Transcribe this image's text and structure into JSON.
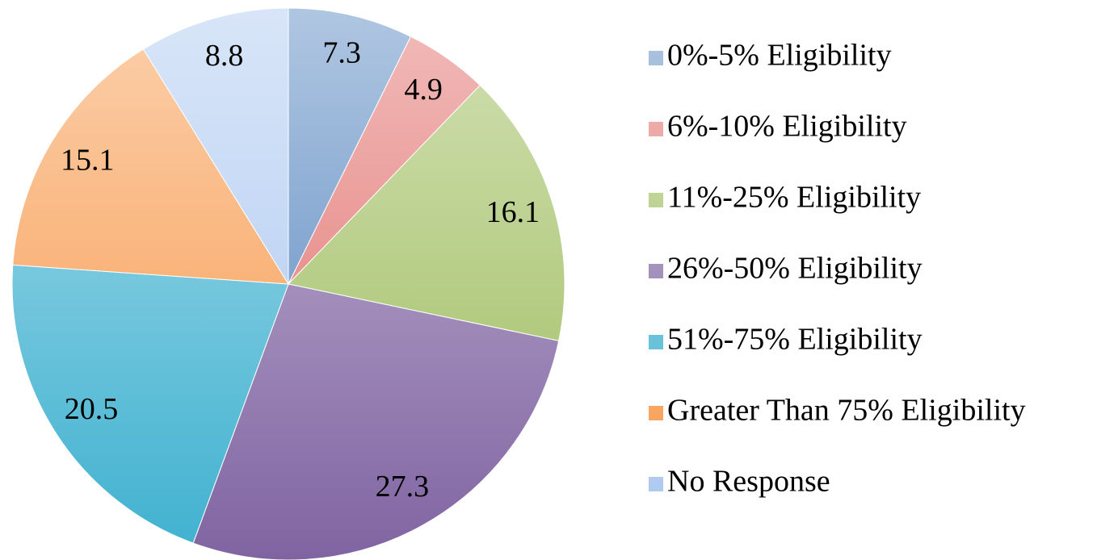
{
  "chart_data": {
    "type": "pie",
    "categories": [
      "0%-5% Eligibility",
      "6%-10% Eligibility",
      "11%-25% Eligibility",
      "26%-50% Eligibility",
      "51%-75% Eligibility",
      "Greater Than 75% Eligibility",
      "No Response"
    ],
    "values": [
      7.3,
      4.9,
      16.1,
      27.3,
      20.5,
      15.1,
      8.8
    ],
    "colors": [
      "#4f81bd",
      "#e06a66",
      "#9bbb59",
      "#8064a2",
      "#3fb1d0",
      "#f79646",
      "#a9c6f0"
    ],
    "legend": "right"
  }
}
